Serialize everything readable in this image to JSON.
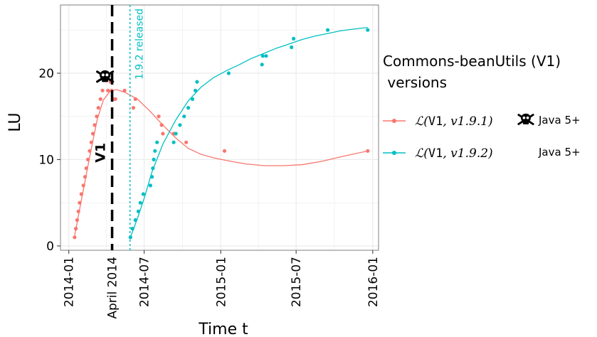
{
  "chart_data": {
    "type": "line",
    "xlabel": "Time t",
    "ylabel": "LU",
    "ylim": [
      -0.5,
      27.9
    ],
    "xlim": [
      "2013-12-12",
      "2016-01-15"
    ],
    "x_ticks": [
      "2014-01",
      "2014-07",
      "2015-01",
      "2015-07",
      "2016-01"
    ],
    "y_ticks": [
      0,
      10,
      20
    ],
    "grid": true,
    "background": "#ffffff",
    "grid_color": "#ebebeb",
    "legend": {
      "position": "right",
      "title_line1": "Commons-beanUtils (V1)",
      "title_line2": " versions",
      "entries": [
        {
          "label_prefix": "ℒ(",
          "label_code": "V1",
          "label_suffix": ", v1.9.1)",
          "note": "Java 5+",
          "vulnerable": true
        },
        {
          "label_prefix": "ℒ(",
          "label_code": "V1",
          "label_suffix": ", v1.9.2)",
          "note": "Java 5+",
          "vulnerable": false
        }
      ]
    },
    "annotations": {
      "vline_v1": {
        "date": "2014-04-15",
        "label": "V1",
        "label_extra": "April 2014",
        "color": "#000000"
      },
      "vline_release": {
        "date": "2014-05-28",
        "label": "1.9.2 released",
        "color": "#00bfc4"
      },
      "vulnerability_marker": {
        "date": "2014-03-29",
        "y": 19.6,
        "icon": "skull-crossbones-icon"
      }
    },
    "series": [
      {
        "name": "ℒ(V1, v1.9.1)",
        "color": "#f8766d",
        "points": [
          [
            "2014-01-15",
            1
          ],
          [
            "2014-01-18",
            2
          ],
          [
            "2014-01-21",
            3
          ],
          [
            "2014-01-24",
            4
          ],
          [
            "2014-01-27",
            5
          ],
          [
            "2014-01-31",
            6
          ],
          [
            "2014-02-05",
            7
          ],
          [
            "2014-02-09",
            8
          ],
          [
            "2014-02-12",
            9
          ],
          [
            "2014-02-16",
            10
          ],
          [
            "2014-02-20",
            11
          ],
          [
            "2014-02-24",
            12
          ],
          [
            "2014-02-28",
            13
          ],
          [
            "2014-03-04",
            14
          ],
          [
            "2014-03-09",
            15
          ],
          [
            "2014-03-13",
            16
          ],
          [
            "2014-03-18",
            17
          ],
          [
            "2014-03-23",
            18
          ],
          [
            "2014-04-05",
            18
          ],
          [
            "2014-04-11",
            19
          ],
          [
            "2014-04-14",
            18
          ],
          [
            "2014-04-18",
            17
          ],
          [
            "2014-04-23",
            17
          ],
          [
            "2014-05-15",
            18
          ],
          [
            "2014-06-05",
            16
          ],
          [
            "2014-06-10",
            17
          ],
          [
            "2014-08-05",
            15
          ],
          [
            "2014-08-12",
            14
          ],
          [
            "2014-08-15",
            13
          ],
          [
            "2014-09-10",
            13
          ],
          [
            "2014-10-10",
            12
          ],
          [
            "2015-01-10",
            11
          ],
          [
            "2015-12-20",
            11
          ]
        ],
        "trend": [
          [
            "2014-01-15",
            1.2
          ],
          [
            "2014-02-01",
            5.5
          ],
          [
            "2014-02-20",
            10.3
          ],
          [
            "2014-03-10",
            14.6
          ],
          [
            "2014-03-25",
            16.9
          ],
          [
            "2014-04-10",
            17.9
          ],
          [
            "2014-04-25",
            18.1
          ],
          [
            "2014-05-15",
            17.8
          ],
          [
            "2014-06-15",
            17.0
          ],
          [
            "2014-07-15",
            15.6
          ],
          [
            "2014-08-15",
            14.0
          ],
          [
            "2014-09-15",
            12.5
          ],
          [
            "2014-10-15",
            11.3
          ],
          [
            "2014-11-15",
            10.6
          ],
          [
            "2014-12-15",
            10.2
          ],
          [
            "2015-01-15",
            9.9
          ],
          [
            "2015-03-01",
            9.5
          ],
          [
            "2015-04-15",
            9.3
          ],
          [
            "2015-06-01",
            9.3
          ],
          [
            "2015-07-15",
            9.4
          ],
          [
            "2015-09-01",
            9.8
          ],
          [
            "2015-10-15",
            10.3
          ],
          [
            "2015-12-20",
            11.0
          ]
        ]
      },
      {
        "name": "ℒ(V1, v1.9.2)",
        "color": "#00bfc4",
        "points": [
          [
            "2014-05-29",
            1
          ],
          [
            "2014-06-03",
            2
          ],
          [
            "2014-06-10",
            3
          ],
          [
            "2014-06-17",
            4
          ],
          [
            "2014-06-22",
            5
          ],
          [
            "2014-06-29",
            6
          ],
          [
            "2014-07-16",
            7
          ],
          [
            "2014-07-20",
            8
          ],
          [
            "2014-07-22",
            9
          ],
          [
            "2014-07-24",
            10
          ],
          [
            "2014-07-27",
            11
          ],
          [
            "2014-08-01",
            12
          ],
          [
            "2014-09-10",
            12
          ],
          [
            "2014-09-15",
            13
          ],
          [
            "2014-09-25",
            14
          ],
          [
            "2014-10-05",
            15
          ],
          [
            "2014-10-15",
            16
          ],
          [
            "2014-10-25",
            17
          ],
          [
            "2014-11-01",
            18
          ],
          [
            "2014-11-05",
            19
          ],
          [
            "2015-01-20",
            20
          ],
          [
            "2015-04-10",
            21
          ],
          [
            "2015-04-12",
            22
          ],
          [
            "2015-04-20",
            22
          ],
          [
            "2015-06-20",
            23
          ],
          [
            "2015-06-25",
            24
          ],
          [
            "2015-09-15",
            25
          ],
          [
            "2015-12-20",
            25
          ]
        ],
        "trend": [
          [
            "2014-05-29",
            1.0
          ],
          [
            "2014-06-15",
            3.2
          ],
          [
            "2014-07-01",
            5.5
          ],
          [
            "2014-07-20",
            8.6
          ],
          [
            "2014-08-15",
            11.8
          ],
          [
            "2014-09-15",
            14.6
          ],
          [
            "2014-10-15",
            16.8
          ],
          [
            "2014-11-15",
            18.4
          ],
          [
            "2014-12-15",
            19.5
          ],
          [
            "2015-01-15",
            20.3
          ],
          [
            "2015-02-15",
            21.0
          ],
          [
            "2015-03-15",
            21.7
          ],
          [
            "2015-04-15",
            22.3
          ],
          [
            "2015-05-15",
            22.9
          ],
          [
            "2015-06-15",
            23.4
          ],
          [
            "2015-07-15",
            23.9
          ],
          [
            "2015-08-15",
            24.3
          ],
          [
            "2015-09-15",
            24.6
          ],
          [
            "2015-10-15",
            24.9
          ],
          [
            "2015-11-15",
            25.1
          ],
          [
            "2015-12-20",
            25.3
          ]
        ]
      }
    ]
  }
}
